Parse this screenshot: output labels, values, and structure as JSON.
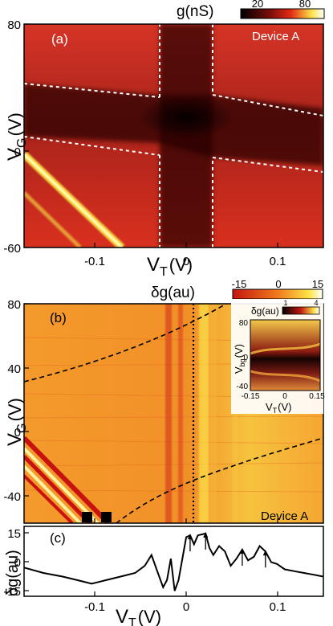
{
  "figure": {
    "panel_a": {
      "label": "(a)",
      "device": "Device A",
      "colorbar": {
        "label": "g(nS)",
        "tick_labels": [
          "20",
          "80"
        ],
        "ticks": [
          20,
          80
        ],
        "range": [
          0,
          100
        ],
        "colormap": "black-red-yellow-white"
      },
      "x_ticks": [
        "-0.1",
        "0",
        "0.1"
      ],
      "y_ticks": [
        "80",
        "0",
        "-60"
      ],
      "x_label": "V_T (V)",
      "y_label": "V_G (V)"
    },
    "panel_b": {
      "label": "(b)",
      "device": "Device A",
      "colorbar": {
        "label": "δg(au)",
        "tick_labels": [
          "-15",
          "0",
          "15"
        ],
        "ticks": [
          -15,
          0,
          15
        ],
        "range": [
          -15,
          15
        ],
        "colormap": "red-orange-yellow-white"
      },
      "x_ticks": [],
      "y_ticks": [
        "80",
        "40",
        "0",
        "-40"
      ],
      "y_label": "V_G (V)",
      "inset": {
        "colorbar_label": "δg(au)",
        "colorbar_ticks": [
          "1",
          "4"
        ],
        "x_ticks": [
          "-0.15",
          "0",
          "0.15"
        ],
        "y_ticks": [
          "80",
          "0",
          "-40"
        ],
        "x_label": "V_T (V)",
        "y_label": "V_bg (V)"
      }
    },
    "panel_c": {
      "label": "(c)",
      "x_ticks": [
        "-0.1",
        "0",
        "0.1"
      ],
      "y_ticks": [
        "15",
        "0",
        "-15"
      ],
      "x_label": "V_T (V)",
      "y_label": "δg(au)"
    }
  },
  "chart_data": [
    {
      "type": "heatmap",
      "panel": "(a)",
      "title": "",
      "xlabel": "V_T (V)",
      "ylabel": "V_G (V)",
      "xlim": [
        -0.16,
        0.15
      ],
      "ylim": [
        -60,
        80
      ],
      "colorbar_label": "g(nS)",
      "colorbar_ticks": [
        20,
        80
      ],
      "features": {
        "low_conductance_cross_center": [
          0.0,
          20
        ],
        "vertical_dashed_lines_x": [
          -0.03,
          0.03
        ],
        "dashed_boundaries": [
          {
            "x": [
              -0.16,
              -0.03
            ],
            "y": [
              40,
              33
            ]
          },
          {
            "x": [
              0.03,
              0.15
            ],
            "y": [
              3,
              -7
            ]
          },
          {
            "x": [
              -0.16,
              -0.03
            ],
            "y": [
              9,
              1
            ]
          },
          {
            "x": [
              0.03,
              0.15
            ],
            "y": [
              35,
              25
            ]
          }
        ],
        "diagonal_bright_bands": [
          {
            "x": [
              -0.16,
              -0.07
            ],
            "y": [
              -12,
              -60
            ]
          },
          {
            "x": [
              -0.16,
              -0.1
            ],
            "y": [
              -32,
              -60
            ]
          }
        ]
      }
    },
    {
      "type": "heatmap",
      "panel": "(b)",
      "title": "",
      "xlabel": "V_T (V)",
      "ylabel": "V_G (V)",
      "xlim": [
        -0.16,
        0.15
      ],
      "ylim": [
        -55,
        80
      ],
      "colorbar_label": "δg(au)",
      "colorbar_ticks": [
        -15,
        0,
        15
      ],
      "features": {
        "dotted_vertical_line_x": 0.008,
        "square_markers": [
          {
            "x": -0.108,
            "y": -50
          },
          {
            "x": -0.088,
            "y": -50
          }
        ],
        "dashed_curves": [
          {
            "x": [
              -0.16,
              -0.1,
              -0.04,
              0.0,
              0.04,
              0.063
            ],
            "y": [
              33,
              41,
              52,
              64,
              77,
              84
            ]
          },
          {
            "x": [
              -0.063,
              -0.04,
              0.0,
              0.04,
              0.09,
              0.15
            ],
            "y": [
              -55,
              -50,
              -37,
              -26,
              -16,
              -7
            ]
          }
        ]
      }
    },
    {
      "type": "line",
      "panel": "(c)",
      "title": "",
      "xlabel": "V_T (V)",
      "ylabel": "δg(au)",
      "xlim": [
        -0.16,
        0.15
      ],
      "ylim": [
        -19,
        20
      ],
      "series": [
        {
          "x": [
            -0.16,
            -0.14,
            -0.12,
            -0.105,
            -0.09,
            -0.075,
            -0.06,
            -0.045,
            -0.035,
            -0.028,
            -0.022,
            -0.016,
            -0.012,
            -0.008,
            -0.004,
            0.0,
            0.004,
            0.008,
            0.012,
            0.016,
            0.02,
            0.028,
            0.032,
            0.036,
            0.042,
            0.048,
            0.054,
            0.06,
            0.066,
            0.072,
            0.078,
            0.084,
            0.09,
            0.096,
            0.102,
            0.11,
            0.12,
            0.13,
            0.14,
            0.15
          ],
          "y": [
            -3,
            -6,
            -8,
            -10,
            -12,
            -10,
            -8,
            -6,
            -2,
            4,
            -5,
            -14,
            -10,
            2,
            -16,
            -10,
            2,
            14,
            15,
            10,
            15,
            16,
            8,
            4,
            9,
            6,
            -2,
            2,
            7,
            1,
            3,
            9,
            6,
            0,
            -1,
            -4,
            -5,
            -6,
            -7,
            -8
          ]
        }
      ],
      "annotations": {
        "arrow_x": [
          0.012,
          0.028,
          0.066,
          0.09
        ]
      }
    }
  ]
}
